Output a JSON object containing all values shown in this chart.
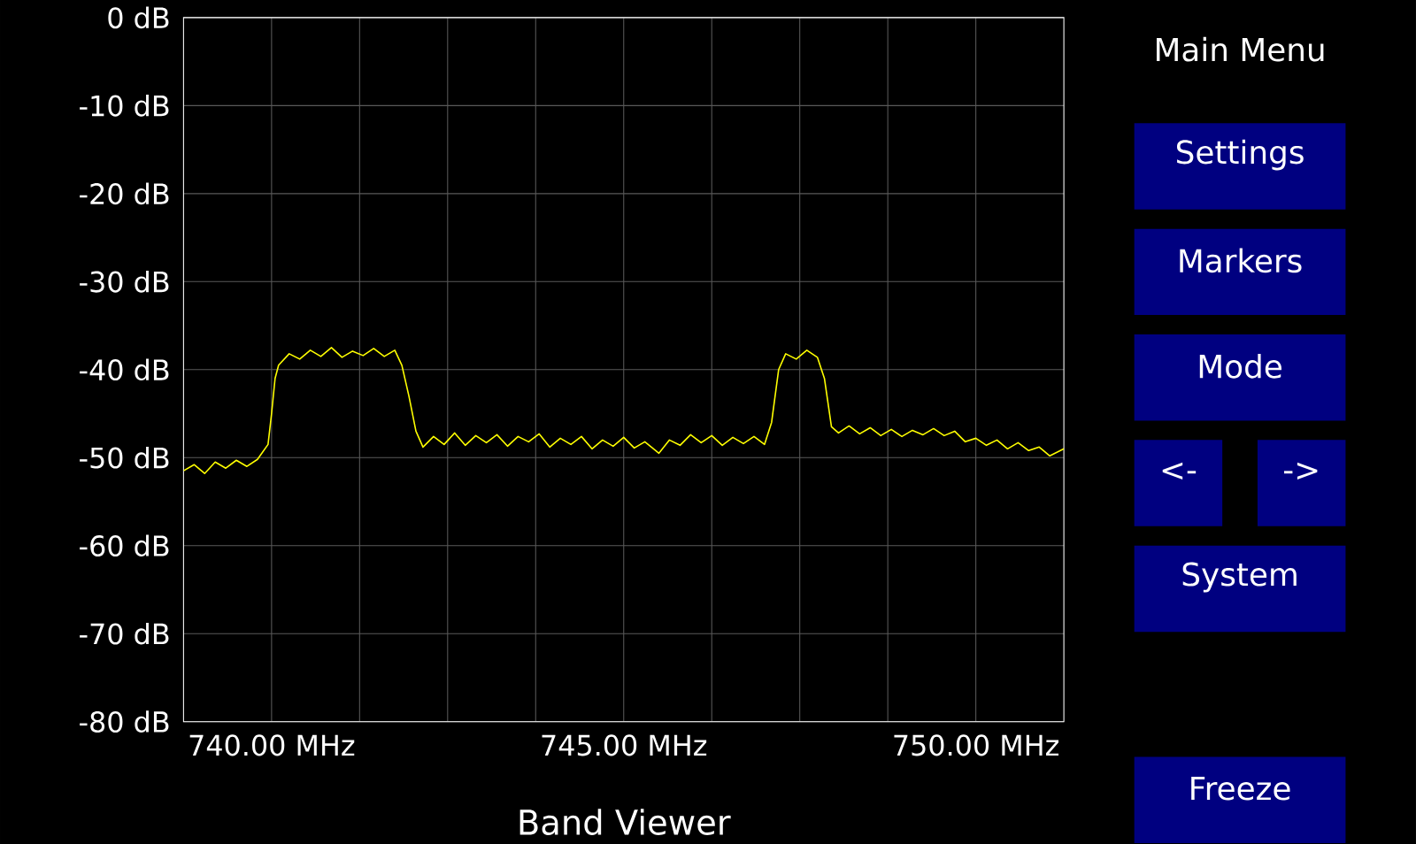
{
  "chart_data": {
    "type": "line",
    "title": "Band Viewer",
    "x": [
      738.75,
      738.9,
      739.05,
      739.2,
      739.35,
      739.5,
      739.65,
      739.8,
      739.95,
      740.0,
      740.05,
      740.1,
      740.25,
      740.4,
      740.55,
      740.7,
      740.85,
      741.0,
      741.15,
      741.3,
      741.45,
      741.6,
      741.75,
      741.85,
      741.95,
      742.05,
      742.15,
      742.3,
      742.45,
      742.6,
      742.75,
      742.9,
      743.05,
      743.2,
      743.35,
      743.5,
      743.65,
      743.8,
      743.95,
      744.1,
      744.25,
      744.4,
      744.55,
      744.7,
      744.85,
      745.0,
      745.15,
      745.3,
      745.5,
      745.65,
      745.8,
      745.95,
      746.1,
      746.25,
      746.4,
      746.55,
      746.7,
      746.85,
      747.0,
      747.1,
      747.2,
      747.3,
      747.45,
      747.6,
      747.75,
      747.85,
      747.95,
      748.05,
      748.2,
      748.35,
      748.5,
      748.65,
      748.8,
      748.95,
      749.1,
      749.25,
      749.4,
      749.55,
      749.7,
      749.85,
      750.0,
      750.15,
      750.3,
      750.45,
      750.6,
      750.75,
      750.9,
      751.05,
      751.25
    ],
    "series": [
      {
        "color": "#ffff00",
        "values": [
          -51.5,
          -50.8,
          -51.8,
          -50.5,
          -51.2,
          -50.3,
          -51.0,
          -50.2,
          -48.5,
          -45,
          -41,
          -39.5,
          -38.2,
          -38.8,
          -37.8,
          -38.5,
          -37.5,
          -38.6,
          -37.9,
          -38.4,
          -37.6,
          -38.5,
          -37.8,
          -39.5,
          -43,
          -47,
          -48.8,
          -47.6,
          -48.5,
          -47.2,
          -48.6,
          -47.5,
          -48.3,
          -47.4,
          -48.7,
          -47.6,
          -48.2,
          -47.3,
          -48.8,
          -47.8,
          -48.5,
          -47.6,
          -49.0,
          -48.0,
          -48.7,
          -47.7,
          -48.9,
          -48.2,
          -49.5,
          -48.0,
          -48.6,
          -47.4,
          -48.3,
          -47.5,
          -48.6,
          -47.7,
          -48.4,
          -47.6,
          -48.5,
          -46,
          -40,
          -38.2,
          -38.8,
          -37.8,
          -38.6,
          -41,
          -46.5,
          -47.2,
          -46.4,
          -47.3,
          -46.6,
          -47.5,
          -46.8,
          -47.6,
          -46.9,
          -47.4,
          -46.7,
          -47.5,
          -47.0,
          -48.2,
          -47.8,
          -48.6,
          -48.0,
          -49.0,
          -48.3,
          -49.2,
          -48.8,
          -49.8,
          -49.0
        ]
      }
    ],
    "xlim": [
      738.75,
      751.25
    ],
    "ylim": [
      -80,
      0
    ],
    "xticks": [
      {
        "value": 740,
        "label": "740.00 MHz"
      },
      {
        "value": 741.25,
        "label": null
      },
      {
        "value": 742.5,
        "label": null
      },
      {
        "value": 743.75,
        "label": null
      },
      {
        "value": 745,
        "label": "745.00 MHz"
      },
      {
        "value": 746.25,
        "label": null
      },
      {
        "value": 747.5,
        "label": null
      },
      {
        "value": 748.75,
        "label": null
      },
      {
        "value": 750,
        "label": "750.00 MHz"
      }
    ],
    "yticks": [
      {
        "value": -80,
        "label": "-80 dB"
      },
      {
        "value": -70,
        "label": "-70 dB"
      },
      {
        "value": -60,
        "label": "-60 dB"
      },
      {
        "value": -50,
        "label": "-50 dB"
      },
      {
        "value": -40,
        "label": "-40 dB"
      },
      {
        "value": -30,
        "label": "-30 dB"
      },
      {
        "value": -20,
        "label": "-20 dB"
      },
      {
        "value": -10,
        "label": "-10 dB"
      },
      {
        "value": 0,
        "label": "0 dB"
      }
    ],
    "grid": true,
    "annotations": [
      "Main Menu",
      "Settings",
      "Markers",
      "Mode",
      "<-",
      "->",
      "System",
      "Freeze"
    ]
  }
}
